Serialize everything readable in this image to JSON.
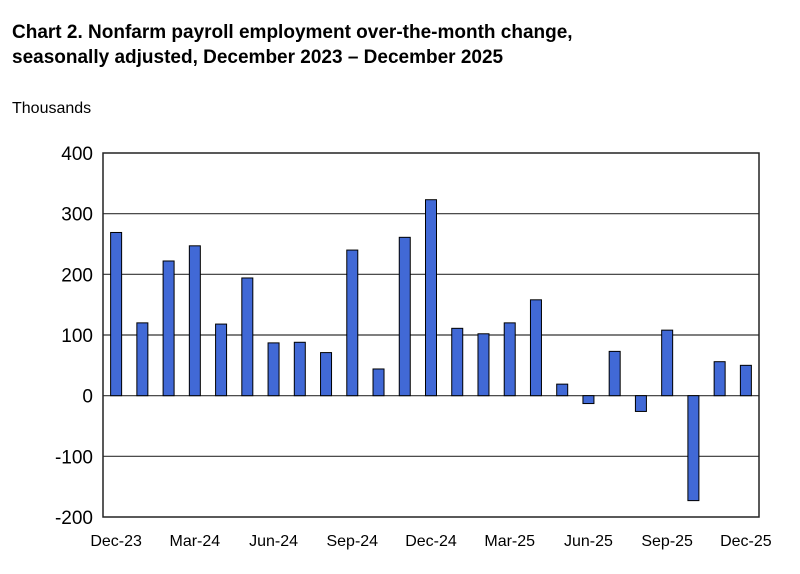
{
  "chart_data": {
    "type": "bar",
    "title_line1": "Chart 2. Nonfarm payroll employment over-the-month change,",
    "title_line2": "seasonally adjusted, December 2023 – December 2025",
    "ylabel": "Thousands",
    "xlabel": "",
    "ylim": [
      -200,
      400
    ],
    "yticks": [
      "400",
      "300",
      "200",
      "100",
      "0",
      "-100",
      "-200"
    ],
    "ytick_values": [
      400,
      300,
      200,
      100,
      0,
      -100,
      -200
    ],
    "grid": true,
    "bar_color": "#4169D6",
    "categories": [
      "Dec-23",
      "Jan-24",
      "Feb-24",
      "Mar-24",
      "Apr-24",
      "May-24",
      "Jun-24",
      "Jul-24",
      "Aug-24",
      "Sep-24",
      "Oct-24",
      "Nov-24",
      "Dec-24",
      "Jan-25",
      "Feb-25",
      "Mar-25",
      "Apr-25",
      "May-25",
      "Jun-25",
      "Jul-25",
      "Aug-25",
      "Sep-25",
      "Oct-25",
      "Nov-25",
      "Dec-25"
    ],
    "xtick_labels": [
      "Dec-23",
      "Mar-24",
      "Jun-24",
      "Sep-24",
      "Dec-24",
      "Mar-25",
      "Jun-25",
      "Sep-25",
      "Dec-25"
    ],
    "values": [
      269,
      120,
      222,
      247,
      118,
      194,
      87,
      88,
      71,
      240,
      44,
      261,
      323,
      111,
      102,
      120,
      158,
      19,
      -13,
      73,
      -26,
      108,
      -173,
      56,
      50
    ]
  }
}
